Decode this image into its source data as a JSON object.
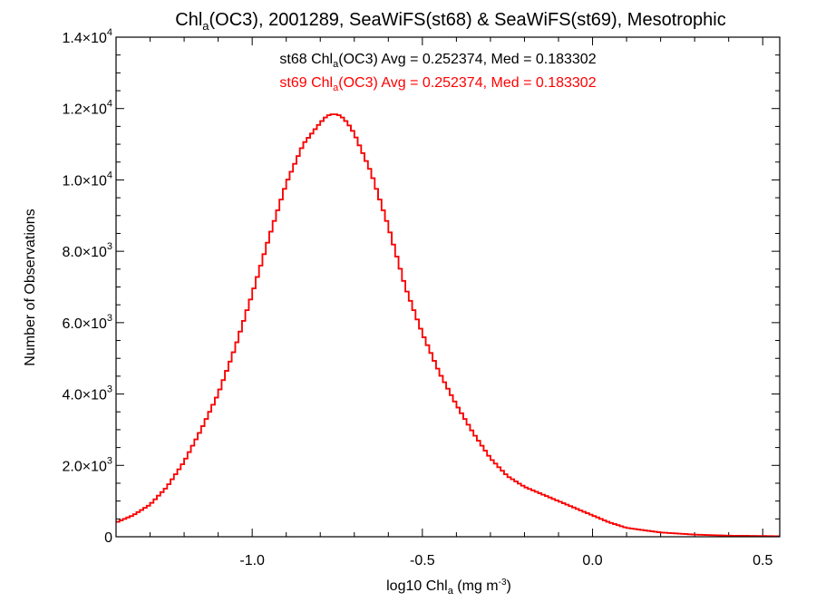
{
  "chart_data": {
    "type": "line",
    "step": true,
    "title": {
      "pre": "Chl",
      "sub": "a",
      "post": "(OC3), 2001289, SeaWiFS(st68) & SeaWiFS(st69), Mesotrophic"
    },
    "xlabel": {
      "pre": "log10 Chl",
      "sub": "a",
      "mid": " (mg m",
      "sup": "-3",
      "post": ")"
    },
    "ylabel": "Number of Observations",
    "xlim": [
      -1.4,
      0.55
    ],
    "ylim": [
      0,
      14000
    ],
    "xticks": [
      -1.0,
      -0.5,
      0.0,
      0.5
    ],
    "xtick_labels": [
      "-1.0",
      "-0.5",
      "0.0",
      "0.5"
    ],
    "yticks": [
      0,
      2000,
      4000,
      6000,
      8000,
      10000,
      12000,
      14000
    ],
    "ytick_labels": [
      {
        "pre": "0",
        "sup": ""
      },
      {
        "pre": "2.0×10",
        "sup": "3"
      },
      {
        "pre": "4.0×10",
        "sup": "3"
      },
      {
        "pre": "6.0×10",
        "sup": "3"
      },
      {
        "pre": "8.0×10",
        "sup": "3"
      },
      {
        "pre": "1.0×10",
        "sup": "4"
      },
      {
        "pre": "1.2×10",
        "sup": "4"
      },
      {
        "pre": "1.4×10",
        "sup": "4"
      }
    ],
    "annotations": [
      {
        "pre": "st68 Chl",
        "sub": "a",
        "post": "(OC3) Avg = 0.252374, Med = 0.183302",
        "color": "#000000"
      },
      {
        "pre": "st69 Chl",
        "sub": "a",
        "post": "(OC3) Avg = 0.252374, Med = 0.183302",
        "color": "#ff0000"
      }
    ],
    "series": [
      {
        "color": "#000000",
        "width": 1.5
      },
      {
        "color": "#ff0000",
        "width": 1.8
      }
    ],
    "x": [
      -1.4,
      -1.35,
      -1.3,
      -1.25,
      -1.2,
      -1.15,
      -1.1,
      -1.05,
      -1.0,
      -0.95,
      -0.9,
      -0.85,
      -0.8,
      -0.78,
      -0.76,
      -0.74,
      -0.72,
      -0.7,
      -0.65,
      -0.6,
      -0.55,
      -0.5,
      -0.45,
      -0.4,
      -0.35,
      -0.3,
      -0.25,
      -0.2,
      -0.15,
      -0.1,
      -0.05,
      0.0,
      0.05,
      0.1,
      0.2,
      0.3,
      0.4,
      0.5,
      0.55
    ],
    "y": [
      400,
      600,
      900,
      1400,
      2100,
      3000,
      4000,
      5300,
      6800,
      8400,
      9900,
      11000,
      11600,
      11800,
      11850,
      11800,
      11600,
      11300,
      10200,
      8700,
      7000,
      5700,
      4600,
      3700,
      2900,
      2200,
      1700,
      1400,
      1200,
      1000,
      800,
      600,
      400,
      250,
      120,
      60,
      30,
      20,
      15
    ]
  }
}
